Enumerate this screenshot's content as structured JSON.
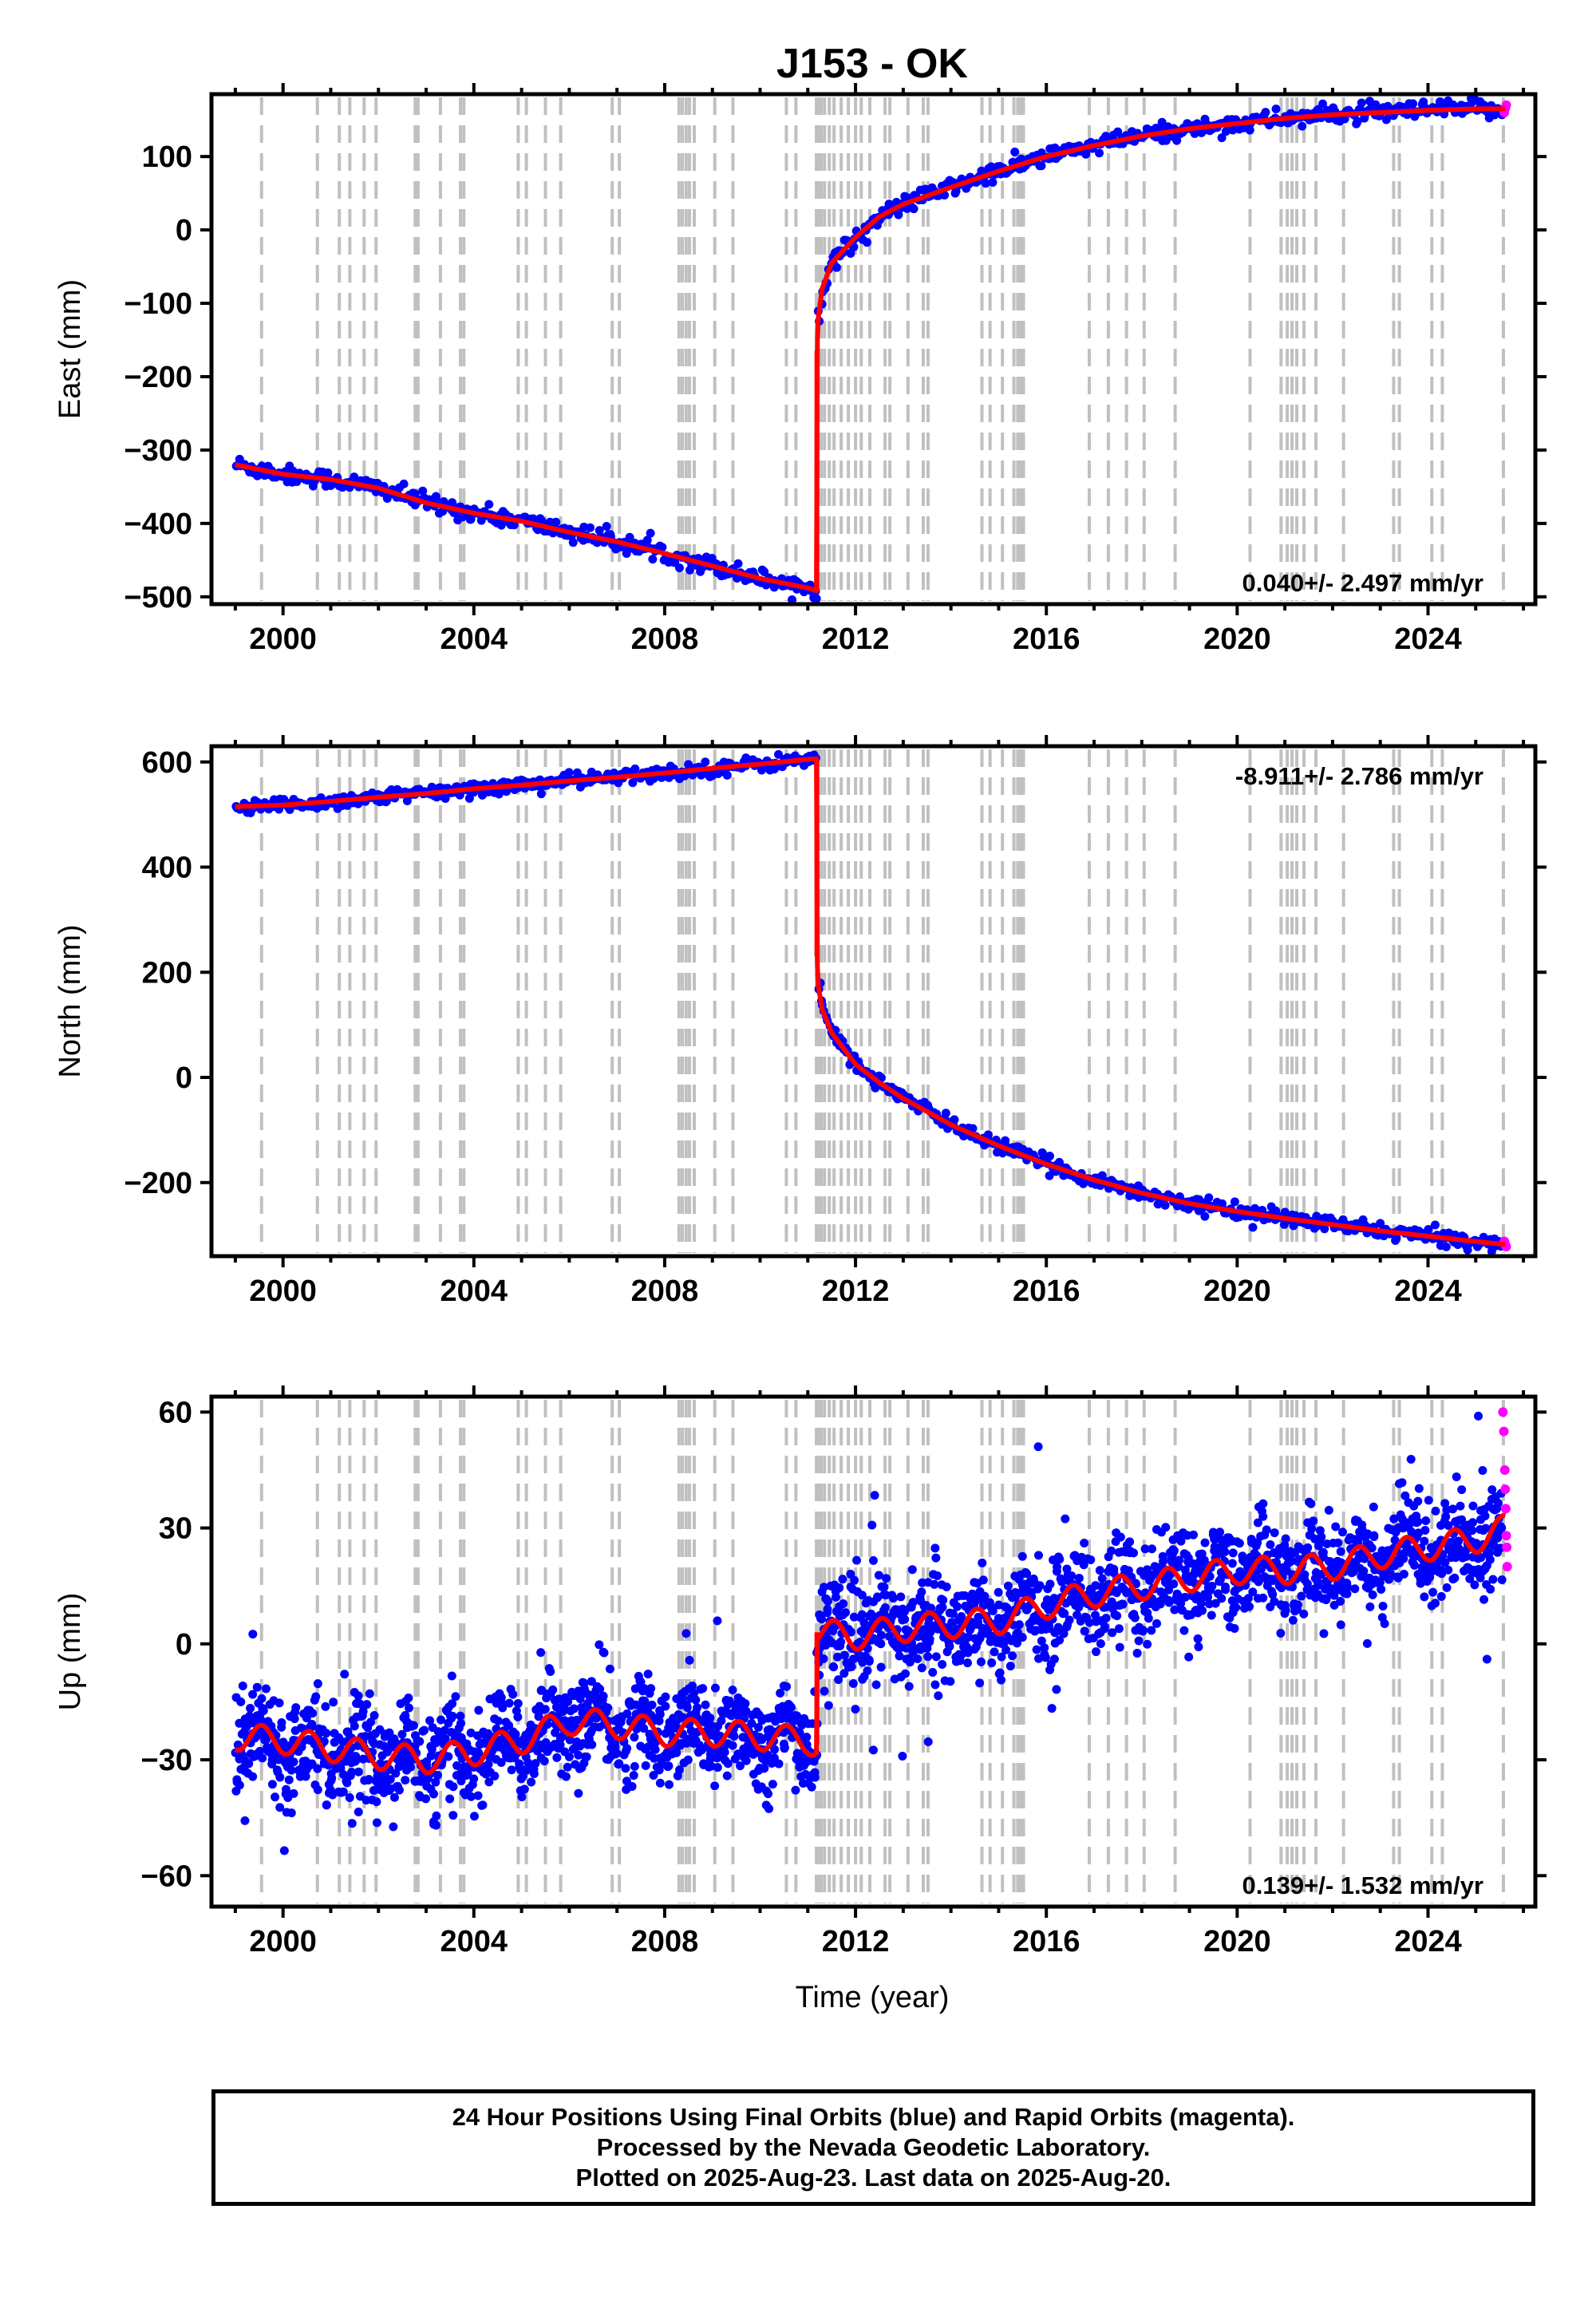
{
  "title": "J153 - OK",
  "x_label": "Time (year)",
  "footer": {
    "line1": "24 Hour Positions Using Final Orbits (blue) and Rapid Orbits (magenta).",
    "line2": "Processed by the Nevada Geodetic Laboratory.",
    "line3": "Plotted on 2025-Aug-23. Last data on 2025-Aug-20."
  },
  "colors": {
    "final_orbits": "#0000ff",
    "rapid_orbits": "#ff00ff",
    "fit": "#ff0000",
    "event_lines": "#c0c0c0"
  },
  "event_lines_years": [
    1999.55,
    2000.72,
    2001.18,
    2001.4,
    2001.7,
    2001.95,
    2002.77,
    2002.83,
    2003.3,
    2003.72,
    2003.79,
    2004.93,
    2005.1,
    2005.5,
    2005.82,
    2006.9,
    2007.05,
    2008.3,
    2008.37,
    2008.45,
    2008.52,
    2008.62,
    2009.05,
    2009.43,
    2010.55,
    2010.75,
    2011.18,
    2011.23,
    2011.28,
    2011.35,
    2011.45,
    2011.55,
    2011.7,
    2011.85,
    2012.0,
    2012.12,
    2012.3,
    2012.62,
    2012.72,
    2013.1,
    2013.42,
    2013.52,
    2014.65,
    2014.82,
    2015.08,
    2015.32,
    2015.4,
    2015.46,
    2015.52,
    2016.9,
    2017.3,
    2017.68,
    2018.05,
    2018.7,
    2020.27,
    2020.92,
    2021.05,
    2021.15,
    2021.25,
    2021.4,
    2021.65,
    2022.23,
    2023.28,
    2023.4,
    2024.08,
    2024.3,
    2025.58
  ],
  "chart_data": [
    {
      "type": "scatter",
      "name": "east",
      "ylabel": "East (mm)",
      "xlim": [
        1998.5,
        2026.25
      ],
      "ylim": [
        -510,
        185
      ],
      "xticks": [
        2000,
        2004,
        2008,
        2012,
        2016,
        2020,
        2024
      ],
      "yticks": [
        -500,
        -400,
        -300,
        -200,
        -100,
        0,
        100
      ],
      "ytick_labels": [
        "−500",
        "−400",
        "−300",
        "−200",
        "−100",
        "0",
        "100"
      ],
      "rate_label": "0.040+/- 2.497 mm/yr",
      "rate_position": "bottom-right",
      "fit_x": [
        1999.0,
        2000.0,
        2001.0,
        2002.0,
        2003.0,
        2004.0,
        2005.0,
        2006.0,
        2007.0,
        2008.0,
        2009.0,
        2010.0,
        2011.0,
        2011.19,
        2011.19,
        2011.22,
        2011.3,
        2011.5,
        2012.0,
        2012.5,
        2013.0,
        2014.0,
        2015.0,
        2016.0,
        2017.0,
        2018.0,
        2019.0,
        2020.0,
        2021.0,
        2022.0,
        2023.0,
        2024.0,
        2025.0,
        2025.63
      ],
      "fit_y": [
        -320,
        -333,
        -340,
        -352,
        -372,
        -386,
        -397,
        -412,
        -425,
        -441,
        -458,
        -475,
        -488,
        -492,
        -165,
        -120,
        -80,
        -45,
        -10,
        18,
        35,
        58,
        80,
        100,
        115,
        128,
        138,
        145,
        152,
        157,
        160,
        163,
        165,
        165
      ],
      "scatter_spread": 6,
      "rapid_x": [
        2025.6,
        2025.62,
        2025.64
      ],
      "rapid_y": [
        160,
        166,
        170
      ]
    },
    {
      "type": "scatter",
      "name": "north",
      "ylabel": "North (mm)",
      "xlim": [
        1998.5,
        2026.25
      ],
      "ylim": [
        -340,
        630
      ],
      "xticks": [
        2000,
        2004,
        2008,
        2012,
        2016,
        2020,
        2024
      ],
      "yticks": [
        -200,
        0,
        200,
        400,
        600
      ],
      "ytick_labels": [
        "−200",
        "0",
        "200",
        "400",
        "600"
      ],
      "rate_label": "-8.911+/- 2.786 mm/yr",
      "rate_position": "top-right",
      "fit_x": [
        1999.0,
        2000.0,
        2001.0,
        2002.0,
        2003.0,
        2004.0,
        2005.0,
        2006.0,
        2007.0,
        2008.0,
        2009.0,
        2010.0,
        2011.0,
        2011.19,
        2011.19,
        2011.22,
        2011.3,
        2011.5,
        2012.0,
        2012.5,
        2013.0,
        2014.0,
        2015.0,
        2016.0,
        2017.0,
        2018.0,
        2019.0,
        2020.0,
        2021.0,
        2022.0,
        2023.0,
        2024.0,
        2025.0,
        2025.63
      ],
      "fit_y": [
        515,
        518,
        525,
        533,
        540,
        549,
        556,
        564,
        571,
        579,
        588,
        596,
        605,
        606,
        230,
        175,
        130,
        85,
        25,
        -10,
        -40,
        -90,
        -130,
        -165,
        -195,
        -220,
        -240,
        -255,
        -268,
        -280,
        -292,
        -302,
        -312,
        -318
      ],
      "scatter_spread": 7,
      "rapid_x": [
        2025.6,
        2025.62,
        2025.64
      ],
      "rapid_y": [
        -312,
        -318,
        -322
      ]
    },
    {
      "type": "scatter",
      "name": "up",
      "ylabel": "Up (mm)",
      "xlabel": "Time (year)",
      "xlim": [
        1998.5,
        2026.25
      ],
      "ylim": [
        -68,
        64
      ],
      "xticks": [
        2000,
        2004,
        2008,
        2012,
        2016,
        2020,
        2024
      ],
      "yticks": [
        -60,
        -30,
        0,
        30,
        60
      ],
      "ytick_labels": [
        "−60",
        "−30",
        "0",
        "30",
        "60"
      ],
      "rate_label": "0.139+/- 1.532 mm/yr",
      "rate_position": "bottom-right",
      "fit_x": [
        1999.0,
        2000.0,
        2001.0,
        2002.0,
        2003.0,
        2004.0,
        2005.0,
        2006.0,
        2007.0,
        2008.0,
        2009.0,
        2010.0,
        2011.0,
        2011.19,
        2011.19,
        2012.0,
        2013.0,
        2014.0,
        2015.0,
        2016.0,
        2017.0,
        2018.0,
        2019.0,
        2020.0,
        2021.0,
        2022.0,
        2023.0,
        2024.0,
        2025.0,
        2025.63
      ],
      "fit_y": [
        -24,
        -25,
        -27,
        -29,
        -30,
        -28,
        -25,
        -20,
        -21,
        -23,
        -23,
        -24,
        -25,
        -26,
        3,
        2,
        4,
        5,
        6,
        10,
        13,
        15,
        17,
        19,
        19,
        20,
        23,
        25,
        27,
        30
      ],
      "seasonal_amplitude": 3.5,
      "scatter_spread": 6,
      "rapid_x": [
        2025.57,
        2025.59,
        2025.61,
        2025.62,
        2025.63,
        2025.64,
        2025.65,
        2025.66
      ],
      "rapid_y": [
        60,
        55,
        45,
        40,
        35,
        28,
        25,
        20
      ]
    }
  ]
}
